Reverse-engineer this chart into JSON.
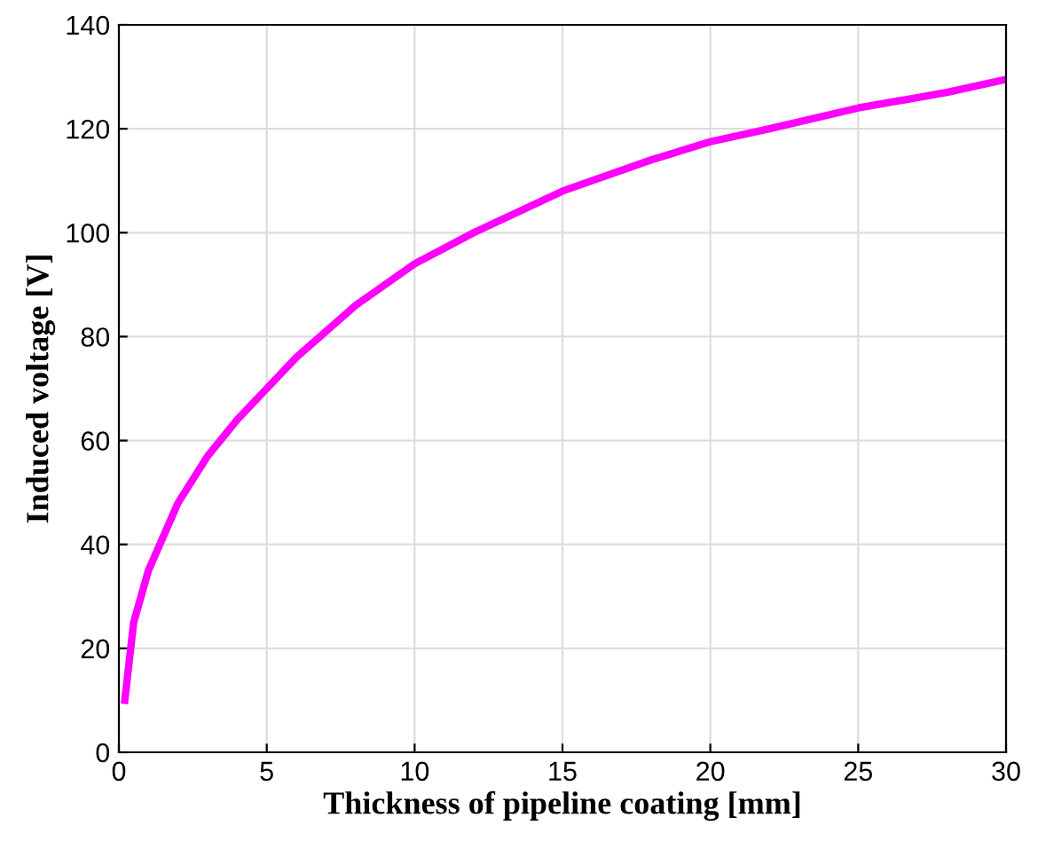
{
  "chart_data": {
    "type": "line",
    "xlabel": "Thickness of pipeline coating [mm]",
    "ylabel": "Induced voltage [V]",
    "series": [
      {
        "color": "#ff00ff",
        "x": [
          0.2,
          0.5,
          1,
          2,
          3,
          4,
          5,
          6,
          7,
          8,
          9,
          10,
          12,
          15,
          18,
          20,
          22,
          25,
          28,
          30
        ],
        "values": [
          10,
          25,
          35,
          48,
          57,
          64,
          70,
          76,
          81,
          86,
          90,
          94,
          100,
          108,
          114,
          117.5,
          120,
          124,
          127,
          129.5
        ]
      }
    ],
    "xlim": [
      0,
      30
    ],
    "ylim": [
      0,
      140
    ],
    "xticks": [
      0,
      5,
      10,
      15,
      20,
      25,
      30
    ],
    "yticks": [
      0,
      20,
      40,
      60,
      80,
      100,
      120,
      140
    ],
    "grid": true,
    "marker": "none",
    "line_style": "solid",
    "legend": false
  }
}
